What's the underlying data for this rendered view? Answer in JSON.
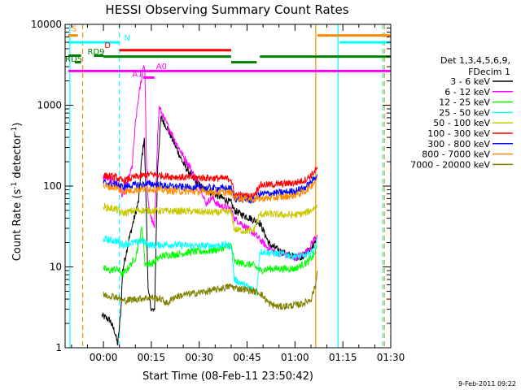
{
  "chart_data": {
    "type": "line",
    "title": "HESSI Observing Summary Count Rates",
    "xlabel": "Start Time (08-Feb-11 23:50:42)",
    "ylabel_main": "Count Rate (s",
    "ylabel_sup1": "-1",
    "ylabel_mid": " detector",
    "ylabel_sup2": "-1",
    "ylabel_end": ")",
    "x_unit": "minutes since start time",
    "xlim": [
      -12,
      90
    ],
    "ylim": [
      1,
      10000
    ],
    "yscale": "log",
    "x_ticks": [
      {
        "v": 0,
        "label": "00:00"
      },
      {
        "v": 15,
        "label": "00:15"
      },
      {
        "v": 30,
        "label": "00:30"
      },
      {
        "v": 45,
        "label": "00:45"
      },
      {
        "v": 60,
        "label": "01:00"
      },
      {
        "v": 75,
        "label": "01:15"
      },
      {
        "v": 90,
        "label": "01:30"
      }
    ],
    "y_ticks": [
      {
        "v": 1,
        "label": "1"
      },
      {
        "v": 10,
        "label": "10"
      },
      {
        "v": 100,
        "label": "100"
      },
      {
        "v": 1000,
        "label": "1000"
      },
      {
        "v": 10000,
        "label": "10000"
      }
    ],
    "legend_header": [
      "Det 1,3,4,5,6,9,",
      "FDecim 1"
    ],
    "legend_position": "right",
    "series": [
      {
        "name": "3 - 6 keV",
        "color": "#000000",
        "points": [
          [
            -0.5,
            2.5
          ],
          [
            2,
            2.2
          ],
          [
            3.5,
            1.6
          ],
          [
            4.5,
            1.1
          ],
          [
            5.5,
            3
          ],
          [
            6,
            9
          ],
          [
            8,
            22
          ],
          [
            11,
            65
          ],
          [
            12,
            220
          ],
          [
            12.8,
            400
          ],
          [
            13.5,
            40
          ],
          [
            14,
            5
          ],
          [
            15,
            3
          ],
          [
            16,
            2.8
          ],
          [
            17,
            180
          ],
          [
            18,
            700
          ],
          [
            20,
            520
          ],
          [
            22,
            350
          ],
          [
            25,
            190
          ],
          [
            28,
            125
          ],
          [
            31,
            95
          ],
          [
            34,
            82
          ],
          [
            37,
            72
          ],
          [
            40,
            62
          ],
          [
            41,
            50
          ],
          [
            43,
            45
          ],
          [
            46,
            40
          ],
          [
            49,
            35
          ],
          [
            52,
            19
          ],
          [
            55,
            16
          ],
          [
            58,
            14
          ],
          [
            61,
            13
          ],
          [
            63,
            14
          ],
          [
            65,
            17
          ],
          [
            66.5,
            20
          ]
        ]
      },
      {
        "name": "6 - 12 keV",
        "color": "#ff00ff",
        "points": [
          [
            0,
            130
          ],
          [
            2,
            120
          ],
          [
            4,
            110
          ],
          [
            5,
            100
          ],
          [
            6,
            75
          ],
          [
            7,
            95
          ],
          [
            9,
            175
          ],
          [
            10,
            580
          ],
          [
            11,
            1250
          ],
          [
            12,
            2200
          ],
          [
            12.5,
            3200
          ],
          [
            13,
            2800
          ],
          [
            13.5,
            180
          ],
          [
            14,
            60
          ],
          [
            15,
            40
          ],
          [
            16,
            30
          ],
          [
            17,
            430
          ],
          [
            17.5,
            950
          ],
          [
            19,
            680
          ],
          [
            21,
            480
          ],
          [
            23,
            330
          ],
          [
            25,
            235
          ],
          [
            27,
            175
          ],
          [
            29,
            120
          ],
          [
            31,
            85
          ],
          [
            32,
            60
          ],
          [
            34,
            72
          ],
          [
            36,
            58
          ],
          [
            38,
            55
          ],
          [
            40,
            52
          ],
          [
            41,
            40
          ],
          [
            43,
            35
          ],
          [
            45,
            30
          ],
          [
            47,
            26
          ],
          [
            49,
            22
          ],
          [
            51,
            18
          ],
          [
            54,
            15
          ],
          [
            57,
            14
          ],
          [
            60,
            13
          ],
          [
            62,
            14
          ],
          [
            64,
            16
          ],
          [
            66,
            22
          ],
          [
            67,
            25
          ]
        ]
      },
      {
        "name": "12 - 25 keV",
        "color": "#00ff00",
        "points": [
          [
            0,
            9.5
          ],
          [
            2,
            9
          ],
          [
            4,
            9.5
          ],
          [
            5,
            9
          ],
          [
            6,
            8
          ],
          [
            8,
            10
          ],
          [
            10,
            13
          ],
          [
            11,
            19
          ],
          [
            12,
            30
          ],
          [
            12.5,
            22
          ],
          [
            13,
            11
          ],
          [
            15,
            11
          ],
          [
            16,
            11.5
          ],
          [
            17,
            12.5
          ],
          [
            18,
            13.5
          ],
          [
            20,
            14
          ],
          [
            24,
            14.5
          ],
          [
            28,
            15.5
          ],
          [
            32,
            15.5
          ],
          [
            36,
            16.5
          ],
          [
            40,
            18.5
          ],
          [
            41,
            11.5
          ],
          [
            44,
            11
          ],
          [
            47,
            10.5
          ],
          [
            49,
            9
          ],
          [
            52,
            9.5
          ],
          [
            56,
            9.5
          ],
          [
            60,
            9.5
          ],
          [
            62,
            10.5
          ],
          [
            64,
            11.5
          ],
          [
            66,
            14
          ],
          [
            67,
            18
          ]
        ]
      },
      {
        "name": "25 - 50 keV",
        "color": "#00ffff",
        "points": [
          [
            0,
            22
          ],
          [
            4,
            21
          ],
          [
            6,
            19
          ],
          [
            10,
            20
          ],
          [
            12,
            21
          ],
          [
            14,
            19
          ],
          [
            16,
            18.5
          ],
          [
            20,
            19
          ],
          [
            25,
            18.5
          ],
          [
            30,
            18
          ],
          [
            35,
            18.5
          ],
          [
            40,
            18.5
          ],
          [
            41,
            7
          ],
          [
            44,
            6
          ],
          [
            46,
            5.5
          ],
          [
            48,
            4.8
          ],
          [
            49,
            15.5
          ],
          [
            52,
            15
          ],
          [
            55,
            14.5
          ],
          [
            58,
            14
          ],
          [
            61,
            13.5
          ],
          [
            64,
            14
          ],
          [
            66,
            16
          ],
          [
            67,
            22
          ]
        ]
      },
      {
        "name": "50 - 100 keV",
        "color": "#c8c800",
        "points": [
          [
            0,
            55
          ],
          [
            4,
            52
          ],
          [
            6,
            46
          ],
          [
            10,
            50
          ],
          [
            14,
            50
          ],
          [
            20,
            49
          ],
          [
            25,
            49
          ],
          [
            30,
            48
          ],
          [
            35,
            47
          ],
          [
            40,
            48
          ],
          [
            41,
            29
          ],
          [
            44,
            28
          ],
          [
            47,
            28
          ],
          [
            49,
            45
          ],
          [
            52,
            45
          ],
          [
            56,
            44
          ],
          [
            60,
            44
          ],
          [
            63,
            46
          ],
          [
            65,
            50
          ],
          [
            67,
            58
          ]
        ]
      },
      {
        "name": "100 - 300 keV",
        "color": "#ff0000",
        "points": [
          [
            0,
            135
          ],
          [
            4,
            128
          ],
          [
            6,
            115
          ],
          [
            10,
            130
          ],
          [
            15,
            140
          ],
          [
            20,
            132
          ],
          [
            25,
            128
          ],
          [
            30,
            127
          ],
          [
            35,
            125
          ],
          [
            40,
            123
          ],
          [
            41,
            78
          ],
          [
            44,
            76
          ],
          [
            47,
            75
          ],
          [
            49,
            103
          ],
          [
            52,
            104
          ],
          [
            56,
            106
          ],
          [
            60,
            110
          ],
          [
            63,
            118
          ],
          [
            65,
            135
          ],
          [
            67,
            165
          ]
        ]
      },
      {
        "name": "300 - 800 keV",
        "color": "#0000ff",
        "points": [
          [
            0,
            110
          ],
          [
            4,
            105
          ],
          [
            6,
            98
          ],
          [
            10,
            103
          ],
          [
            15,
            107
          ],
          [
            20,
            100
          ],
          [
            25,
            97
          ],
          [
            30,
            95
          ],
          [
            35,
            94
          ],
          [
            40,
            93
          ],
          [
            41,
            70
          ],
          [
            44,
            68
          ],
          [
            47,
            67
          ],
          [
            49,
            80
          ],
          [
            52,
            81
          ],
          [
            56,
            83
          ],
          [
            60,
            87
          ],
          [
            63,
            95
          ],
          [
            65,
            110
          ],
          [
            67,
            140
          ]
        ]
      },
      {
        "name": "800 - 7000 keV",
        "color": "#ff8c00",
        "points": [
          [
            0,
            100
          ],
          [
            4,
            95
          ],
          [
            6,
            85
          ],
          [
            10,
            90
          ],
          [
            15,
            93
          ],
          [
            20,
            88
          ],
          [
            25,
            86
          ],
          [
            30,
            85
          ],
          [
            35,
            84
          ],
          [
            40,
            83
          ],
          [
            41,
            72
          ],
          [
            44,
            70
          ],
          [
            47,
            69
          ],
          [
            49,
            70
          ],
          [
            52,
            71
          ],
          [
            56,
            73
          ],
          [
            60,
            77
          ],
          [
            63,
            85
          ],
          [
            65,
            100
          ],
          [
            67,
            125
          ]
        ]
      },
      {
        "name": "7000 - 20000 keV",
        "color": "#808000",
        "points": [
          [
            0,
            4.5
          ],
          [
            4,
            4.3
          ],
          [
            6,
            3.8
          ],
          [
            10,
            4
          ],
          [
            15,
            4.2
          ],
          [
            18,
            4
          ],
          [
            20,
            3.5
          ],
          [
            22,
            4.2
          ],
          [
            25,
            4.5
          ],
          [
            30,
            4.8
          ],
          [
            35,
            5.2
          ],
          [
            40,
            5.8
          ],
          [
            41,
            5.5
          ],
          [
            44,
            5.3
          ],
          [
            47,
            5
          ],
          [
            49,
            4.8
          ],
          [
            52,
            3.5
          ],
          [
            55,
            3.2
          ],
          [
            58,
            3.3
          ],
          [
            61,
            3.4
          ],
          [
            63,
            3.6
          ],
          [
            65,
            4
          ],
          [
            66.5,
            6
          ],
          [
            67,
            9
          ]
        ]
      }
    ],
    "vlines": [
      {
        "x": -10.5,
        "color": "#00ffff",
        "dash": "solid"
      },
      {
        "x": -6.5,
        "color": "#ff8c00",
        "dash": "dashed"
      },
      {
        "x": 5,
        "color": "#00ffff",
        "dash": "dashed"
      },
      {
        "x": 66.5,
        "color": "#ff8c00",
        "dash": "solid"
      },
      {
        "x": 73.5,
        "color": "#00ffff",
        "dash": "solid"
      },
      {
        "x": 87.5,
        "color": "#00ffff",
        "dash": "dashed"
      },
      {
        "x": 88,
        "color": "#ff8c00",
        "dash": "dashed"
      }
    ],
    "flag_bars": [
      {
        "x1": -11,
        "x2": -8,
        "y": 7300,
        "color": "#ff8c00"
      },
      {
        "x1": -11,
        "x2": 5,
        "y": 6000,
        "color": "#00ffff"
      },
      {
        "x1": 5,
        "x2": 40,
        "y": 4800,
        "color": "#ff0000"
      },
      {
        "x1": -11,
        "x2": -7,
        "y": 4100,
        "color": "#008000"
      },
      {
        "x1": -3,
        "x2": 0,
        "y": 4100,
        "color": "#008000"
      },
      {
        "x1": 0,
        "x2": 40,
        "y": 4000,
        "color": "#008000"
      },
      {
        "x1": 49,
        "x2": 90,
        "y": 4000,
        "color": "#008000"
      },
      {
        "x1": 40,
        "x2": 48,
        "y": 3400,
        "color": "#008000"
      },
      {
        "x1": -9,
        "x2": -7,
        "y": 3400,
        "color": "#008000"
      },
      {
        "x1": -11,
        "x2": 90,
        "y": 2650,
        "color": "#ff00ff"
      },
      {
        "x1": 12.5,
        "x2": 16,
        "y": 2200,
        "color": "#ff00ff"
      },
      {
        "x1": 67,
        "x2": 90,
        "y": 7300,
        "color": "#ff8c00"
      },
      {
        "x1": 74,
        "x2": 90,
        "y": 6000,
        "color": "#00ffff"
      }
    ],
    "flag_labels": [
      {
        "text": "S",
        "x": -10,
        "y": 8200,
        "color": "#ff8c00"
      },
      {
        "text": "N",
        "x": 6.5,
        "y": 6300,
        "color": "#00ffff"
      },
      {
        "text": "D",
        "x": 0.3,
        "y": 5100,
        "color": "#ff0000"
      },
      {
        "text": "RD9",
        "x": -5,
        "y": 4250,
        "color": "#008000"
      },
      {
        "text": "RD5",
        "x": -12,
        "y": 3450,
        "color": "#008000"
      },
      {
        "text": "A0",
        "x": 16.5,
        "y": 2800,
        "color": "#ff00ff"
      },
      {
        "text": "A1",
        "x": 9,
        "y": 2250,
        "color": "#ff00ff"
      }
    ],
    "timestamp": "9-Feb-2011 09:22"
  }
}
